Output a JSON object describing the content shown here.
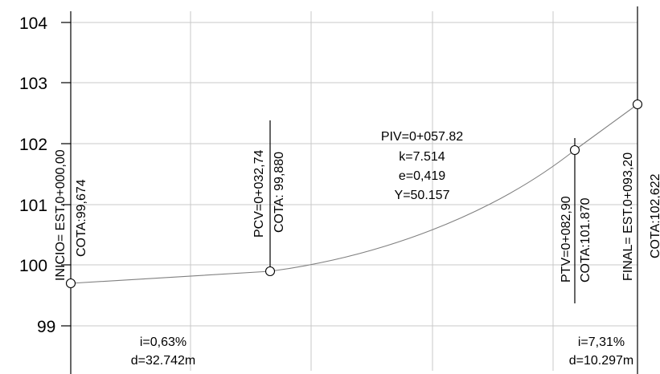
{
  "chart_data": {
    "type": "line",
    "y_ticks": [
      "104",
      "103",
      "102",
      "101",
      "100",
      "99"
    ],
    "ylim": [
      98.3,
      104.3
    ],
    "xlim": [
      0,
      93.2
    ],
    "grid": true,
    "curve_points": [
      {
        "x": 0,
        "y": 99.674
      },
      {
        "x": 32.742,
        "y": 99.88
      },
      {
        "x": 82.9,
        "y": 101.87
      },
      {
        "x": 93.2,
        "y": 102.622
      }
    ],
    "annotations": {
      "inicio": "INICIO= EST.0+000,00",
      "inicio_cota": "COTA:99,674",
      "pcv": "PCV=0+032,74",
      "pcv_cota": "COTA: 99,880",
      "piv": "PIV=0+057.82",
      "k": "k=7.514",
      "e": "e=0,419",
      "y": "Y=50.157",
      "ptv": "PTV=0+082,90",
      "ptv_cota": "COTA:101.870",
      "final": "FINAL= EST.0+093,20",
      "final_cota": "COTA:102,622",
      "slope1": "i=0,63%",
      "dist1": "d=32.742m",
      "slope2": "i=7,31%",
      "dist2": "d=10.297m"
    }
  }
}
